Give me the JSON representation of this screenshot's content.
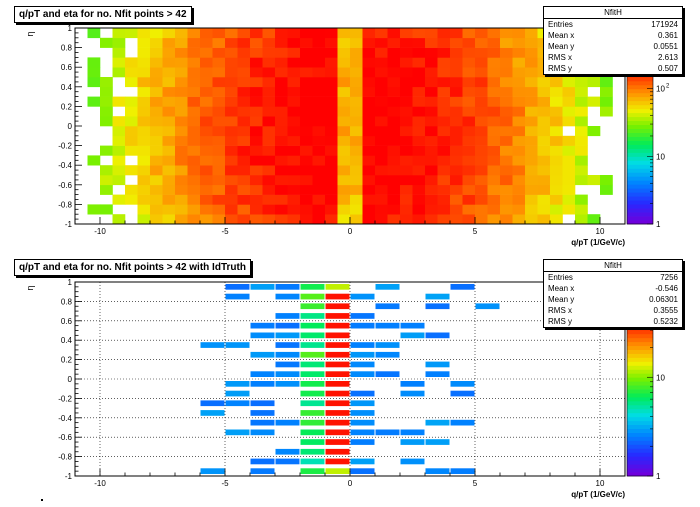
{
  "chart_data": [
    {
      "type": "heatmap",
      "title": "q/pT and eta for no. Nfit points > 42",
      "xlabel": "q/pT (1/GeV/c)",
      "ylabel": "η",
      "xlim": [
        -11,
        11
      ],
      "ylim": [
        -1,
        1
      ],
      "x_ticks": [
        "-10",
        "-5",
        "0",
        "5",
        "10"
      ],
      "y_ticks": [
        "-1",
        "-0.8",
        "-0.6",
        "-0.4",
        "-0.2",
        "0",
        "0.2",
        "0.4",
        "0.6",
        "0.8",
        "1"
      ],
      "color_scale": "log",
      "colorbar_ticks": [
        "1",
        "10",
        "10^2"
      ],
      "grid": false,
      "stats": {
        "name": "NfitH",
        "entries": [
          {
            "label": "Entries",
            "value": "171924"
          },
          {
            "label": "Mean x",
            "value": "0.361"
          },
          {
            "label": "Mean y",
            "value": "0.0551"
          },
          {
            "label": "RMS x",
            "value": "2.613"
          },
          {
            "label": "RMS y",
            "value": "0.507"
          }
        ]
      }
    },
    {
      "type": "heatmap",
      "title": "q/pT and eta for no. Nfit points > 42 with IdTruth",
      "xlabel": "q/pT (1/GeV/c)",
      "ylabel": "η",
      "xlim": [
        -11,
        11
      ],
      "ylim": [
        -1,
        1
      ],
      "x_ticks": [
        "-10",
        "-5",
        "0",
        "5",
        "10"
      ],
      "y_ticks": [
        "-1",
        "-0.8",
        "-0.6",
        "-0.4",
        "-0.2",
        "0",
        "0.2",
        "0.4",
        "0.6",
        "0.8",
        "1"
      ],
      "color_scale": "log",
      "colorbar_ticks": [
        "1",
        "10"
      ],
      "grid": true,
      "stats": {
        "name": "NfitH",
        "entries": [
          {
            "label": "Entries",
            "value": "7256"
          },
          {
            "label": "Mean x",
            "value": "-0.546"
          },
          {
            "label": "Mean y",
            "value": "0.06301"
          },
          {
            "label": "RMS x",
            "value": "0.3555"
          },
          {
            "label": "RMS y",
            "value": "0.5232"
          }
        ]
      }
    }
  ]
}
